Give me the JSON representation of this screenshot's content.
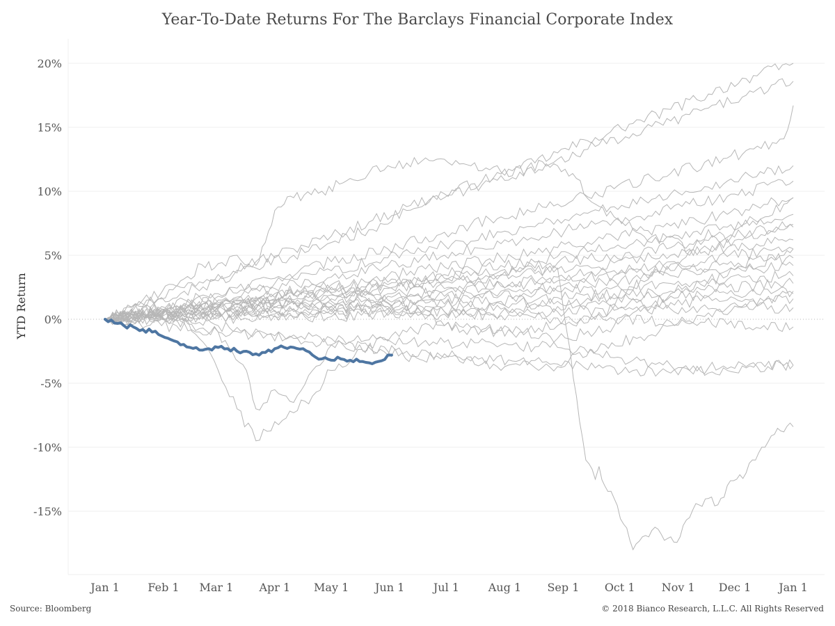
{
  "title": "Year-To-Date Returns For The Barclays Financial Corporate Index",
  "source": "Source: Bloomberg",
  "copyright": "© 2018 Bianco Research, L.L.C. All Rights Reserved",
  "chart_data": {
    "type": "line",
    "title": "Year-To-Date Returns For The Barclays Financial Corporate Index",
    "xlabel": "",
    "ylabel": "YTD Return",
    "x_unit": "day of year (0 = Jan 1)",
    "xlim": [
      0,
      365
    ],
    "ylim": [
      -20,
      22
    ],
    "x_ticks": [
      {
        "label": "Jan 1",
        "value": 0
      },
      {
        "label": "Feb 1",
        "value": 31
      },
      {
        "label": "Mar 1",
        "value": 59
      },
      {
        "label": "Apr 1",
        "value": 90
      },
      {
        "label": "May 1",
        "value": 120
      },
      {
        "label": "Jun 1",
        "value": 151
      },
      {
        "label": "Jul 1",
        "value": 181
      },
      {
        "label": "Aug 1",
        "value": 212
      },
      {
        "label": "Sep 1",
        "value": 243
      },
      {
        "label": "Oct 1",
        "value": 273
      },
      {
        "label": "Nov 1",
        "value": 304
      },
      {
        "label": "Dec 1",
        "value": 334
      },
      {
        "label": "Jan 1",
        "value": 365
      }
    ],
    "y_ticks": [
      {
        "label": "20%",
        "value": 20
      },
      {
        "label": "15%",
        "value": 15
      },
      {
        "label": "10%",
        "value": 10
      },
      {
        "label": "5%",
        "value": 5
      },
      {
        "label": "0%",
        "value": 0
      },
      {
        "label": "-5%",
        "value": -5
      },
      {
        "label": "-10%",
        "value": -10
      },
      {
        "label": "-15%",
        "value": -15
      }
    ],
    "grid": true,
    "colors": {
      "history": "#b6b6b6",
      "current": "#4e76a2"
    },
    "series": [
      {
        "role": "history",
        "x": [
          0,
          20,
          40,
          60,
          80,
          100,
          120,
          140,
          160,
          180,
          200,
          220,
          240,
          260,
          280,
          300,
          320,
          340,
          365
        ],
        "y": [
          0,
          1.2,
          2.5,
          3.5,
          4.5,
          5.5,
          6.5,
          7.6,
          8.8,
          9.8,
          10.8,
          11.8,
          13,
          14.2,
          15.3,
          16.4,
          17.6,
          18.8,
          20
        ]
      },
      {
        "role": "history",
        "x": [
          0,
          20,
          40,
          60,
          80,
          100,
          120,
          140,
          160,
          180,
          200,
          220,
          240,
          260,
          280,
          300,
          320,
          340,
          365
        ],
        "y": [
          0,
          1,
          2,
          3,
          4,
          5,
          6,
          7,
          8.5,
          9.5,
          10.5,
          11.5,
          12.5,
          13.5,
          14.5,
          15.5,
          16.5,
          17.5,
          18.6
        ]
      },
      {
        "role": "history",
        "x": [
          0,
          30,
          60,
          90,
          120,
          150,
          180,
          210,
          240,
          270,
          300,
          330,
          360,
          362,
          365
        ],
        "y": [
          0,
          1,
          2,
          3.2,
          4.5,
          5.5,
          6.8,
          8,
          9,
          10.2,
          11.4,
          12.6,
          14.1,
          14.8,
          16.7
        ]
      },
      {
        "role": "history",
        "x": [
          0,
          30,
          60,
          90,
          120,
          150,
          180,
          210,
          240,
          270,
          300,
          330,
          365
        ],
        "y": [
          0,
          0.8,
          1.8,
          2.8,
          3.8,
          4.8,
          5.8,
          6.8,
          7.8,
          8.8,
          9.8,
          10.8,
          12
        ]
      },
      {
        "role": "history",
        "x": [
          0,
          30,
          60,
          90,
          120,
          150,
          180,
          210,
          240,
          270,
          300,
          330,
          365
        ],
        "y": [
          0,
          0.7,
          1.5,
          2.4,
          3.3,
          4.2,
          5,
          5.9,
          6.8,
          7.7,
          8.6,
          9.6,
          10.8
        ]
      },
      {
        "role": "history",
        "x": [
          0,
          30,
          60,
          90,
          120,
          150,
          180,
          210,
          240,
          270,
          300,
          330,
          365
        ],
        "y": [
          0,
          0.6,
          1.3,
          2,
          2.7,
          3.4,
          4.1,
          4.8,
          5.6,
          6.4,
          7.3,
          8.2,
          9.5
        ]
      },
      {
        "role": "history",
        "x": [
          0,
          30,
          60,
          90,
          120,
          150,
          180,
          210,
          240,
          270,
          300,
          330,
          365
        ],
        "y": [
          0,
          0.5,
          1.1,
          1.7,
          2.3,
          2.9,
          3.5,
          4.2,
          4.9,
          5.6,
          6.4,
          7.2,
          8.2
        ]
      },
      {
        "role": "history",
        "x": [
          0,
          30,
          60,
          90,
          120,
          150,
          180,
          210,
          240,
          270,
          300,
          330,
          365
        ],
        "y": [
          0,
          0.5,
          1,
          1.6,
          2.1,
          2.7,
          3.2,
          3.8,
          4.4,
          5,
          5.6,
          6.4,
          7.4
        ]
      },
      {
        "role": "history",
        "x": [
          0,
          30,
          60,
          90,
          120,
          150,
          180,
          210,
          240,
          270,
          300,
          330,
          365
        ],
        "y": [
          0,
          0.4,
          0.9,
          1.4,
          1.9,
          2.4,
          2.9,
          3.4,
          3.9,
          4.4,
          5,
          5.6,
          6.2
        ]
      },
      {
        "role": "history",
        "x": [
          0,
          30,
          60,
          90,
          120,
          150,
          180,
          210,
          240,
          270,
          300,
          330,
          365
        ],
        "y": [
          0,
          0.4,
          0.8,
          1.2,
          1.6,
          2,
          2.4,
          2.8,
          3.3,
          3.8,
          4.3,
          4.9,
          5.5
        ]
      },
      {
        "role": "history",
        "x": [
          0,
          30,
          60,
          90,
          120,
          150,
          180,
          210,
          240,
          270,
          300,
          330,
          365
        ],
        "y": [
          0,
          0.3,
          0.7,
          1,
          1.4,
          1.8,
          2.2,
          2.6,
          3,
          3.4,
          3.8,
          4.3,
          4.8
        ]
      },
      {
        "role": "history",
        "x": [
          0,
          30,
          60,
          90,
          120,
          150,
          180,
          210,
          240,
          270,
          300,
          330,
          365
        ],
        "y": [
          0,
          0.3,
          0.6,
          0.9,
          1.2,
          1.5,
          1.8,
          2.2,
          2.6,
          3,
          3.4,
          3.8,
          4.2
        ]
      },
      {
        "role": "history",
        "x": [
          0,
          30,
          60,
          90,
          120,
          150,
          180,
          210,
          240,
          270,
          300,
          330,
          365
        ],
        "y": [
          0,
          0.2,
          0.5,
          0.7,
          1,
          1.3,
          1.6,
          1.9,
          2.2,
          2.5,
          2.8,
          3.1,
          3.4
        ]
      },
      {
        "role": "history",
        "x": [
          0,
          30,
          60,
          90,
          120,
          150,
          180,
          210,
          240,
          270,
          300,
          330,
          365
        ],
        "y": [
          0,
          0.2,
          0.4,
          0.6,
          0.8,
          1,
          1.2,
          1.4,
          1.7,
          2,
          2.2,
          2.5,
          2.8
        ]
      },
      {
        "role": "history",
        "x": [
          0,
          30,
          60,
          90,
          120,
          150,
          180,
          210,
          240,
          270,
          300,
          330,
          365
        ],
        "y": [
          0,
          0.1,
          0.3,
          0.4,
          0.6,
          0.8,
          1,
          1.2,
          1.4,
          1.6,
          1.8,
          2,
          2.2
        ]
      },
      {
        "role": "history",
        "x": [
          0,
          30,
          60,
          90,
          120,
          150,
          180,
          210,
          240,
          270,
          300,
          330,
          365
        ],
        "y": [
          0,
          0.1,
          0.2,
          0.3,
          0.4,
          0.5,
          0.6,
          0.8,
          1,
          1.2,
          1.3,
          1.5,
          1.6
        ]
      },
      {
        "role": "history",
        "x": [
          0,
          30,
          60,
          90,
          120,
          150,
          180,
          210,
          240,
          270,
          300,
          330,
          365
        ],
        "y": [
          0,
          0,
          0.1,
          0.2,
          0.2,
          0.3,
          0.4,
          0.5,
          0.6,
          0.7,
          0.8,
          0.9,
          0.9
        ]
      },
      {
        "role": "history",
        "x": [
          0,
          30,
          60,
          90,
          120,
          150,
          180,
          210,
          240,
          270,
          300,
          330,
          365
        ],
        "y": [
          0,
          0.6,
          1.1,
          1.2,
          1,
          0.8,
          0.6,
          0.3,
          0.1,
          0,
          -0.2,
          -0.4,
          -0.6
        ]
      },
      {
        "role": "history",
        "x": [
          0,
          20,
          40,
          60,
          80,
          100,
          120,
          140,
          160,
          180,
          200,
          220,
          240,
          260,
          280,
          300,
          320,
          340,
          365
        ],
        "y": [
          0,
          0.5,
          0.2,
          -0.5,
          -1,
          -1.5,
          -2,
          -2.2,
          -2.5,
          -2.7,
          -3,
          -3.2,
          -3.5,
          -3.8,
          -4,
          -4.2,
          -3.8,
          -3.7,
          -3.6
        ]
      },
      {
        "role": "history",
        "x": [
          0,
          30,
          60,
          75,
          80,
          90,
          100,
          110,
          120,
          135,
          150,
          165,
          180,
          200,
          220,
          240,
          265,
          282,
          300,
          320,
          340,
          350,
          365
        ],
        "y": [
          0,
          0,
          -1,
          -4,
          -7,
          -5.5,
          -6.5,
          -4,
          -2,
          -2,
          -2.5,
          -3,
          -3,
          -3.5,
          -3.6,
          -3.7,
          -2,
          -1.5,
          -0.5,
          0.5,
          1,
          1.5,
          2
        ]
      },
      {
        "role": "history",
        "x": [
          0,
          20,
          40,
          55,
          58,
          70,
          80,
          85,
          90,
          95,
          100,
          115,
          130,
          150,
          180,
          210,
          240,
          250,
          260,
          270,
          280,
          290,
          300,
          310,
          320,
          330,
          340,
          350,
          360,
          365
        ],
        "y": [
          0,
          1.5,
          3,
          4.5,
          4,
          5,
          4.2,
          6,
          8.5,
          9,
          9.5,
          10,
          11,
          12,
          12.5,
          11.5,
          12,
          11,
          9,
          8,
          7,
          6,
          6.5,
          5,
          7,
          6,
          7.5,
          8,
          9,
          9.5
        ]
      },
      {
        "role": "history",
        "x": [
          0,
          20,
          40,
          50,
          60,
          70,
          80,
          90,
          110,
          120,
          140,
          160,
          180,
          200,
          220,
          240,
          260,
          270,
          280,
          290,
          300,
          320,
          340,
          360,
          365
        ],
        "y": [
          0,
          1,
          0,
          -1.5,
          -4,
          -7,
          -9.5,
          -8,
          -6,
          -4,
          -2,
          -1,
          -0.5,
          -0.8,
          -1,
          -1.5,
          -1,
          -0.5,
          0.5,
          1,
          2,
          3,
          4,
          5,
          5.5
        ]
      },
      {
        "role": "history",
        "x": [
          0,
          30,
          60,
          90,
          120,
          150,
          180,
          210,
          240,
          245,
          250,
          255,
          260,
          262,
          265,
          270,
          275,
          280,
          285,
          290,
          295,
          300,
          305,
          310,
          315,
          320,
          325,
          330,
          335,
          340,
          345,
          350,
          355,
          360,
          365
        ],
        "y": [
          0,
          0.5,
          1,
          1.5,
          2,
          2.5,
          3,
          3.5,
          4,
          -1,
          -6,
          -11,
          -12.5,
          -11.5,
          -13,
          -14,
          -16,
          -18,
          -17,
          -16.5,
          -16.8,
          -17,
          -17,
          -15.5,
          -14.5,
          -14,
          -14.5,
          -13,
          -12.5,
          -12,
          -11,
          -10,
          -9,
          -8.8,
          -8.4
        ]
      },
      {
        "role": "history",
        "x": [
          0,
          30,
          60,
          90,
          120,
          150,
          180,
          210,
          240,
          250,
          260,
          270,
          280,
          290,
          300,
          310,
          320,
          330,
          340,
          350,
          360,
          365
        ],
        "y": [
          0,
          -0.5,
          -1,
          -1.3,
          -1.5,
          -1.6,
          -1.8,
          -2,
          -2.2,
          -2.5,
          -2.7,
          -3,
          -3.2,
          -3.4,
          -3.6,
          -4,
          -4.2,
          -4,
          -3.8,
          -3.7,
          -3.6,
          -3.6
        ]
      },
      {
        "role": "history",
        "x": [
          0,
          40,
          80,
          120,
          140,
          160,
          180,
          200,
          220,
          240,
          260,
          270,
          280,
          290,
          300,
          320,
          340,
          360,
          365
        ],
        "y": [
          0,
          0.8,
          1.5,
          2.5,
          2,
          1,
          -0.5,
          -1,
          -0.8,
          -0.5,
          0,
          1,
          2.5,
          3.5,
          4.5,
          5.5,
          6.5,
          7,
          7.2
        ]
      }
    ],
    "current": {
      "role": "current",
      "x": [
        0,
        5,
        10,
        15,
        20,
        25,
        30,
        35,
        40,
        45,
        50,
        55,
        60,
        65,
        70,
        75,
        80,
        85,
        90,
        95,
        100,
        105,
        110,
        115,
        120,
        125,
        130,
        135,
        140,
        145,
        150,
        152
      ],
      "y": [
        0,
        -0.3,
        -0.5,
        -0.6,
        -0.8,
        -1,
        -1.3,
        -1.6,
        -2,
        -2.2,
        -2.4,
        -2.3,
        -2.2,
        -2.3,
        -2.5,
        -2.5,
        -2.7,
        -2.6,
        -2.3,
        -2.2,
        -2.2,
        -2.3,
        -2.8,
        -3.1,
        -3.2,
        -3.1,
        -3.2,
        -3.3,
        -3.4,
        -3.3,
        -2.8,
        -2.8
      ]
    }
  }
}
